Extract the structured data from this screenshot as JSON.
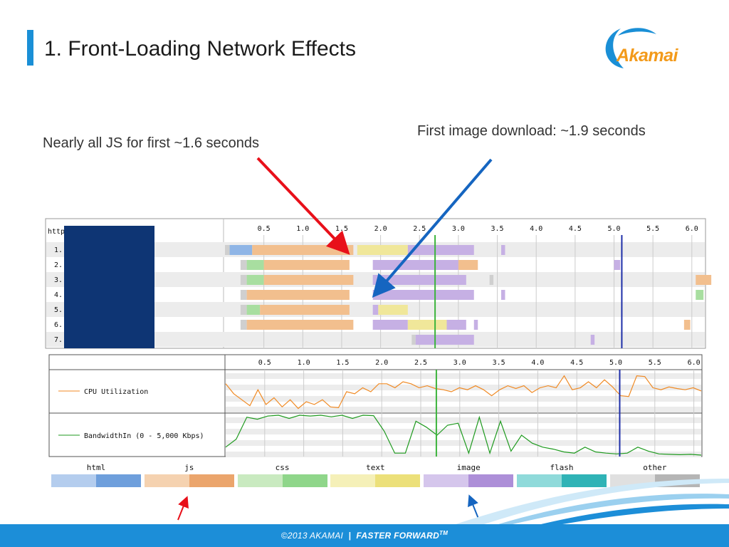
{
  "title": "1. Front-Loading Network Effects",
  "logo": {
    "text": "Akamai",
    "icon": "akamai-wave-logo-icon"
  },
  "annotations": {
    "js_note": "Nearly all JS for first ~1.6 seconds",
    "image_note": "First image download:  ~1.9 seconds"
  },
  "waterfall": {
    "header_label": "http",
    "ticks": [
      "0.5",
      "1.0",
      "1.5",
      "2.0",
      "2.5",
      "3.0",
      "3.5",
      "4.0",
      "4.5",
      "5.0",
      "5.5",
      "6.0"
    ],
    "row_labels": [
      "1.",
      "2.",
      "3.",
      "4.",
      "5.",
      "6.",
      "7."
    ],
    "markers": {
      "green_line_s": 2.7,
      "blue_line_s": 5.1
    }
  },
  "perf": {
    "ticks": [
      "0.5",
      "1.0",
      "1.5",
      "2.0",
      "2.5",
      "3.0",
      "3.5",
      "4.0",
      "4.5",
      "5.0",
      "5.5",
      "6.0"
    ],
    "cpu_label": "CPU Utilization",
    "bw_label": "BandwidthIn (0 - 5,000 Kbps)",
    "colors": {
      "cpu": "#f08a24",
      "bw": "#1f9a1f"
    }
  },
  "legend": [
    {
      "label": "html",
      "c1": "#b4cdee",
      "c2": "#6e9fdc"
    },
    {
      "label": "js",
      "c1": "#f5d2b0",
      "c2": "#eba56c"
    },
    {
      "label": "css",
      "c1": "#c9eac0",
      "c2": "#8fd68a"
    },
    {
      "label": "text",
      "c1": "#f5f0b8",
      "c2": "#ece07a"
    },
    {
      "label": "image",
      "c1": "#d5c6ec",
      "c2": "#ad8fd8"
    },
    {
      "label": "flash",
      "c1": "#8fdada",
      "c2": "#2fb3b6"
    },
    {
      "label": "other",
      "c1": "#e0e0e0",
      "c2": "#b5b5b5"
    }
  ],
  "footer": {
    "copyright": "©2013 AKAMAI",
    "separator": "|",
    "tagline": "FASTER FORWARD",
    "tm": "TM"
  }
}
